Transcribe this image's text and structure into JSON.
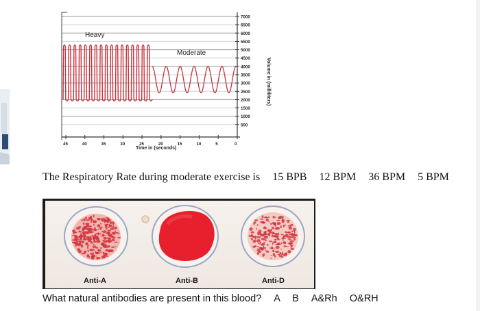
{
  "chart_data": {
    "type": "line",
    "title": "",
    "xlabel": "Time in (seconds)",
    "ylabel": "Volume in (milliliters)",
    "x_tick_labels": [
      "45",
      "40",
      "35",
      "30",
      "25",
      "20",
      "15",
      "10",
      "5",
      "0"
    ],
    "y_tick_labels": [
      "500",
      "1000",
      "1500",
      "2000",
      "2500",
      "3000",
      "3500",
      "4000",
      "4500",
      "5000",
      "5500",
      "6000",
      "6500",
      "7000"
    ],
    "ylim": [
      0,
      7000
    ],
    "annotations": [
      "Heavy",
      "Moderate"
    ],
    "series": [
      {
        "segment": "heavy",
        "cycles": 17,
        "y_min": 2000,
        "y_max": 5200
      },
      {
        "segment": "moderate",
        "cycles": 6,
        "y_min": 2400,
        "y_max": 4000
      }
    ],
    "grid": true
  },
  "question1": {
    "text": "The Respiratory Rate during moderate exercise is",
    "options": [
      "15 BPB",
      "12 BPM",
      "36 BPM",
      "5 BPM"
    ]
  },
  "blood_card": {
    "labels": [
      "Anti-A",
      "Anti-B",
      "Anti-D"
    ]
  },
  "question2": {
    "text": "What natural antibodies are present in this blood?",
    "options": [
      "A",
      "B",
      "A&Rh",
      "O&RH"
    ]
  },
  "colors": {
    "trace": "#c8313c",
    "blood": "#e8202e",
    "card_bg": "#f3ede7",
    "card_frame": "#1c1a1a"
  }
}
